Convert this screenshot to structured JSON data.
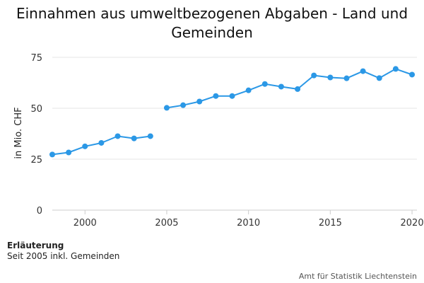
{
  "chart_data": {
    "type": "line",
    "title": "Einnahmen aus umweltbezogenen Abgaben - Land und Gemeinden",
    "xlabel": "",
    "ylabel": "in Mio. CHF",
    "xlim": [
      1998,
      2020.3
    ],
    "ylim": [
      0,
      75
    ],
    "x_ticks": [
      2000,
      2005,
      2010,
      2015,
      2020
    ],
    "y_ticks": [
      0,
      25,
      50,
      75
    ],
    "grid": "horizontal",
    "legend": "none",
    "series_color": "#2b98e6",
    "segments": [
      {
        "x": [
          1998,
          1999,
          2000,
          2001,
          2002,
          2003,
          2004
        ],
        "y": [
          27.3,
          28.3,
          31.3,
          33.0,
          36.3,
          35.2,
          36.3
        ]
      },
      {
        "x": [
          2005,
          2006,
          2007,
          2008,
          2009,
          2010,
          2011,
          2012,
          2013,
          2014,
          2015,
          2016,
          2017,
          2018,
          2019,
          2020
        ],
        "y": [
          50.2,
          51.5,
          53.3,
          56.0,
          56.0,
          58.8,
          61.9,
          60.6,
          59.4,
          66.1,
          65.1,
          64.7,
          68.2,
          64.8,
          69.3,
          66.5
        ]
      }
    ]
  },
  "notes": {
    "heading": "Erläuterung",
    "text": "Seit 2005 inkl. Gemeinden"
  },
  "source": "Amt für Statistik Liechtenstein"
}
